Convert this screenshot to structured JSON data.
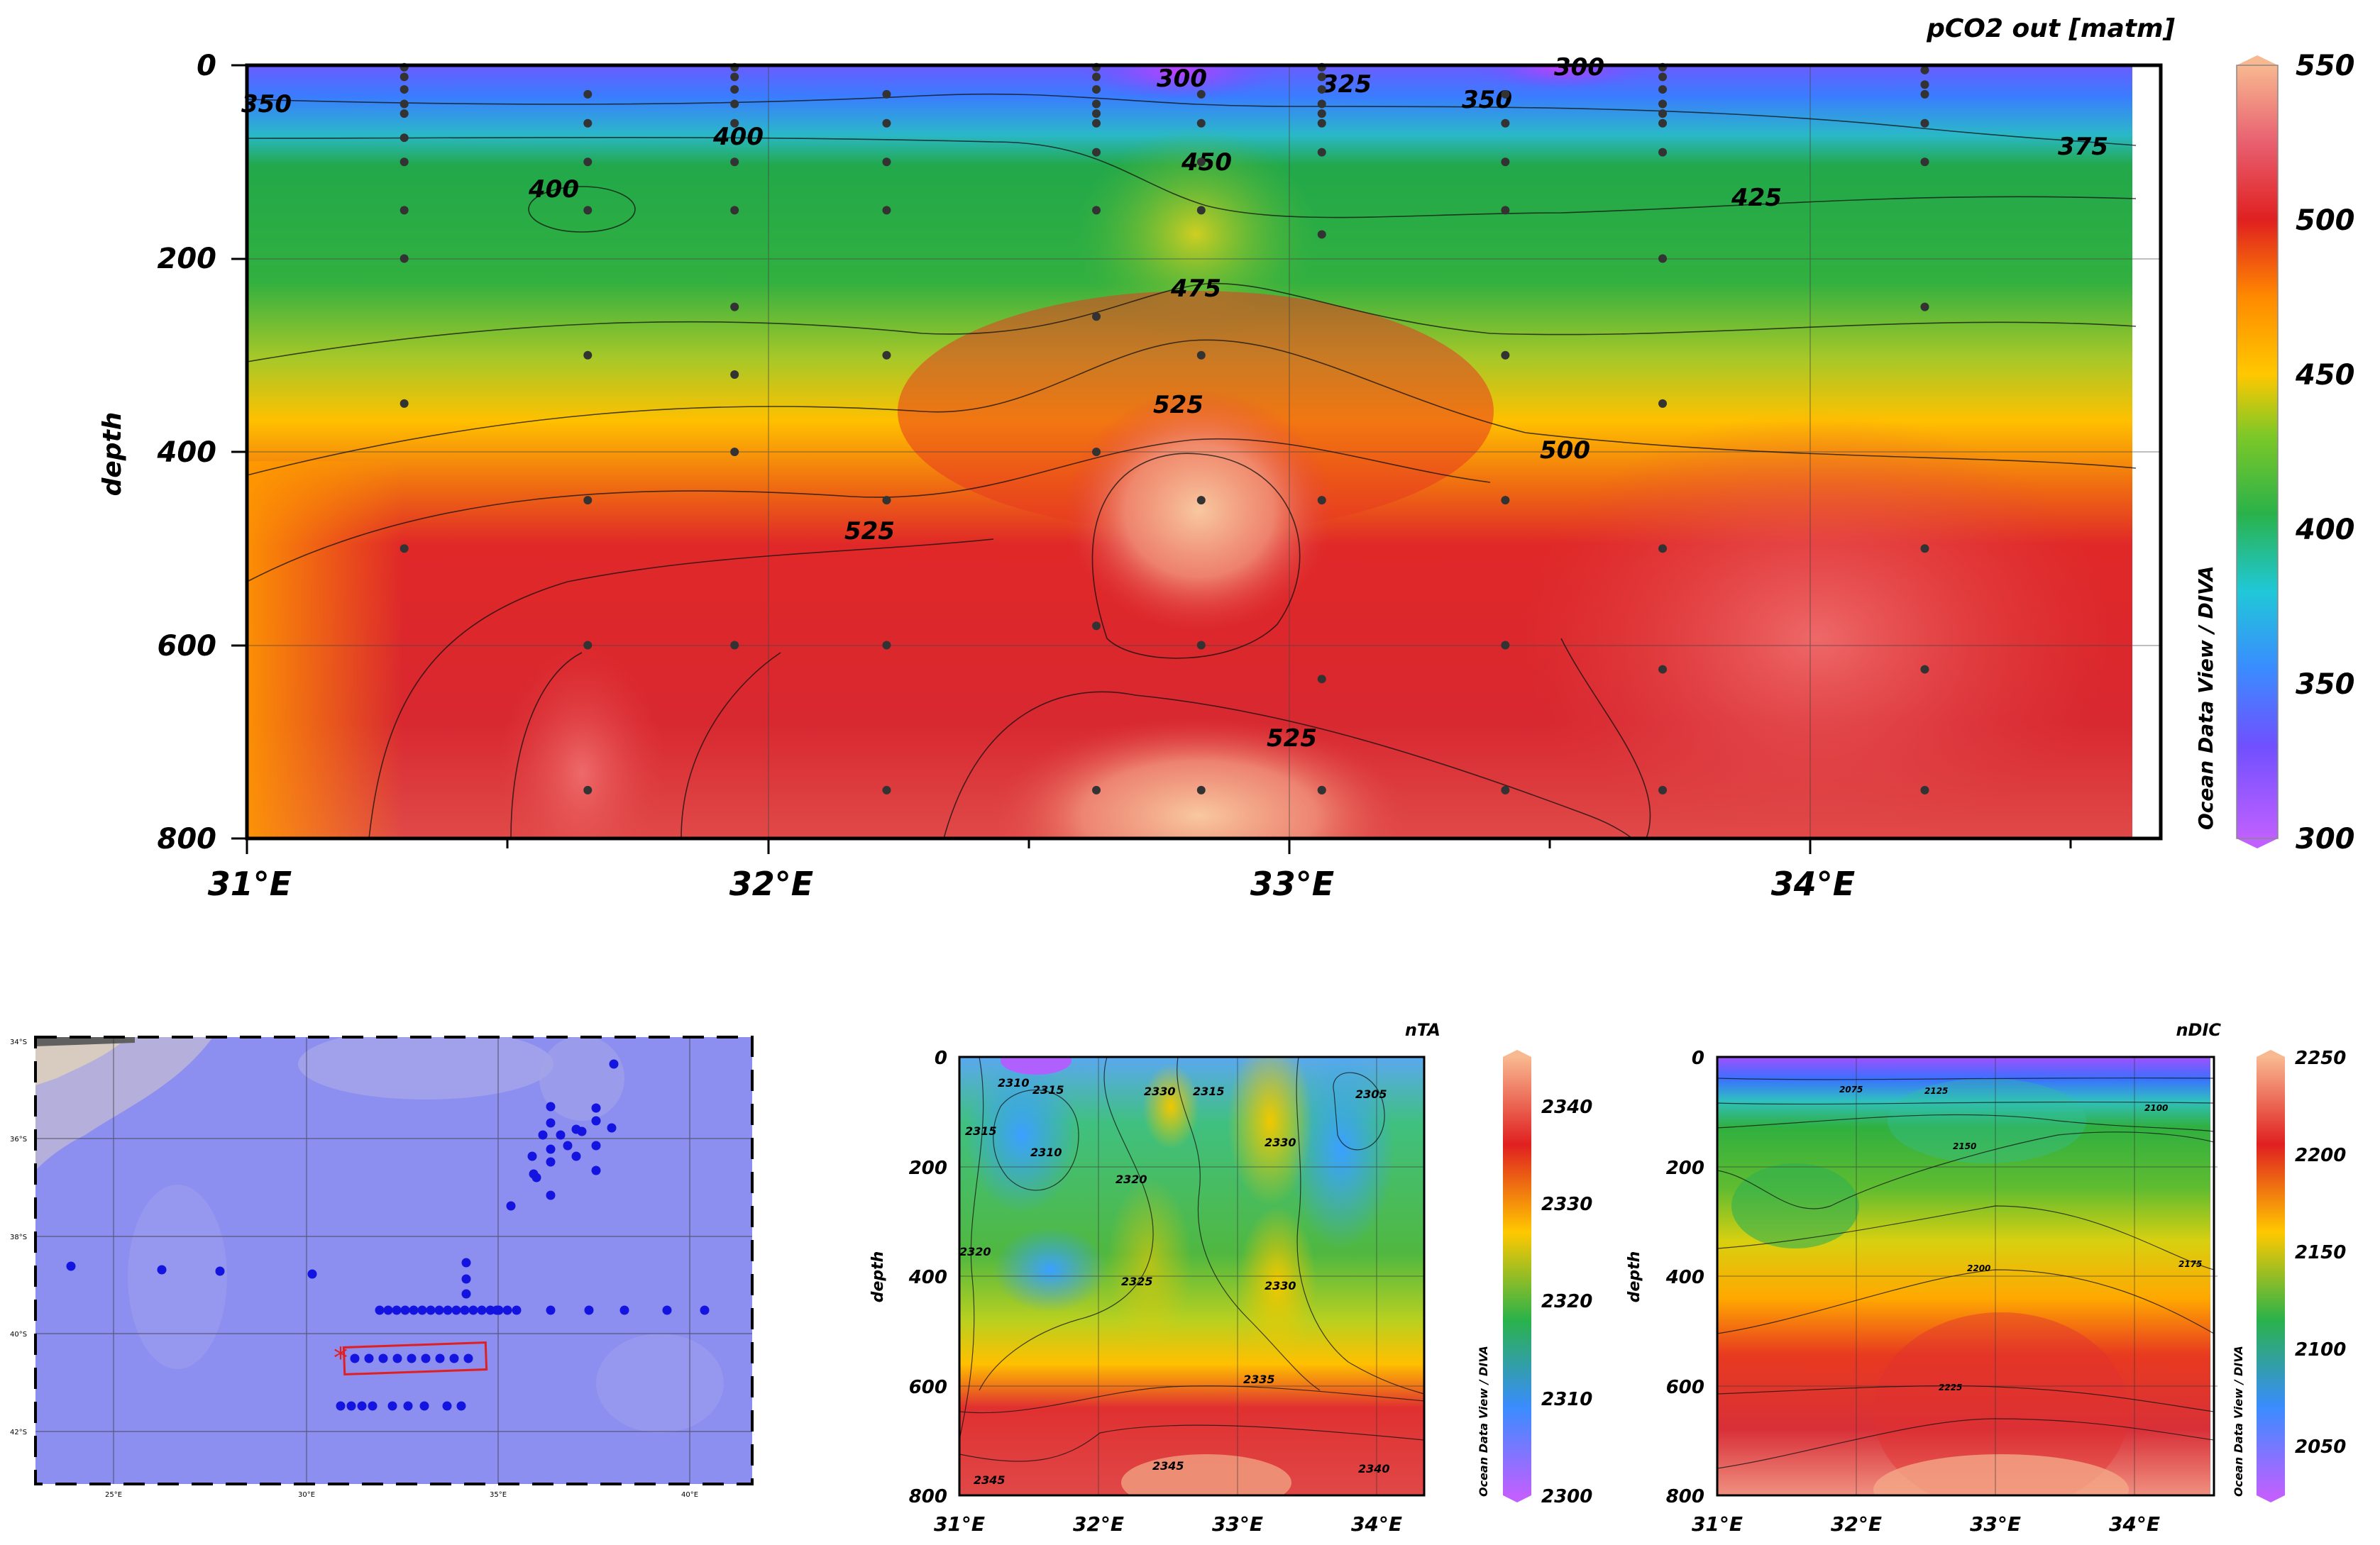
{
  "chart_data": [
    {
      "type": "heatmap",
      "title": "pCO2 out [matm]",
      "ylabel": "depth",
      "xlabel": "",
      "x_ticks": [
        "31°E",
        "32°E",
        "33°E",
        "34°E"
      ],
      "y_ticks": [
        "0",
        "200",
        "400",
        "600",
        "800"
      ],
      "xlim": [
        31.0,
        34.65
      ],
      "ylim": [
        0,
        800
      ],
      "colorbar": {
        "ticks": [
          "300",
          "350",
          "400",
          "450",
          "500",
          "550"
        ],
        "range": [
          300,
          550
        ],
        "credit": "Ocean Data View / DIVA"
      },
      "contour_labels": [
        "350",
        "300",
        "325",
        "300",
        "350",
        "375",
        "400",
        "400",
        "450",
        "425",
        "475",
        "525",
        "500",
        "525",
        "525"
      ],
      "sample_points": {
        "x": [
          31.3,
          31.3,
          31.3,
          31.3,
          31.3,
          31.3,
          31.3,
          31.3,
          31.3,
          31.3,
          31.3,
          31.65,
          31.65,
          31.65,
          31.65,
          31.65,
          31.65,
          31.65,
          31.65,
          31.93,
          31.93,
          31.93,
          31.93,
          31.93,
          31.93,
          31.93,
          31.93,
          31.93,
          31.93,
          31.93,
          32.22,
          32.22,
          32.22,
          32.22,
          32.22,
          32.22,
          32.22,
          32.22,
          32.62,
          32.62,
          32.62,
          32.62,
          32.62,
          32.62,
          32.62,
          32.62,
          32.62,
          32.62,
          32.62,
          32.62,
          32.82,
          32.82,
          32.82,
          32.82,
          32.82,
          32.82,
          32.82,
          32.82,
          33.05,
          33.05,
          33.05,
          33.05,
          33.05,
          33.05,
          33.05,
          33.05,
          33.05,
          33.05,
          33.05,
          33.05,
          33.4,
          33.4,
          33.4,
          33.4,
          33.4,
          33.4,
          33.4,
          33.4,
          33.7,
          33.7,
          33.7,
          33.7,
          33.7,
          33.7,
          33.7,
          33.7,
          33.7,
          33.7,
          33.7,
          33.7,
          34.2,
          34.2,
          34.2,
          34.2,
          34.2,
          34.2,
          34.2,
          34.2,
          34.2
        ],
        "y": [
          2,
          12,
          25,
          40,
          50,
          75,
          100,
          150,
          200,
          350,
          500,
          30,
          60,
          100,
          150,
          300,
          450,
          600,
          750,
          2,
          12,
          25,
          40,
          60,
          100,
          150,
          250,
          320,
          400,
          600,
          30,
          60,
          100,
          150,
          300,
          450,
          600,
          750,
          2,
          12,
          25,
          40,
          50,
          60,
          90,
          150,
          260,
          400,
          580,
          750,
          30,
          60,
          100,
          150,
          300,
          450,
          600,
          750,
          2,
          12,
          25,
          40,
          50,
          60,
          90,
          175,
          450,
          635,
          750,
          750,
          30,
          60,
          100,
          150,
          300,
          450,
          600,
          750,
          2,
          12,
          25,
          40,
          50,
          60,
          90,
          200,
          350,
          500,
          625,
          750,
          30,
          60,
          100,
          250,
          500,
          625,
          750,
          5,
          20
        ]
      }
    },
    {
      "type": "scatter",
      "title": "",
      "x_ticks": [
        "25°E",
        "30°E",
        "35°E",
        "40°E"
      ],
      "y_ticks": [
        "34°S",
        "36°S",
        "38°S",
        "40°S",
        "42°S"
      ],
      "station_count": 64
    },
    {
      "type": "heatmap",
      "title": "nTA",
      "ylabel": "depth",
      "x_ticks": [
        "31°E",
        "32°E",
        "33°E",
        "34°E"
      ],
      "y_ticks": [
        "0",
        "200",
        "400",
        "600",
        "800"
      ],
      "ylim": [
        0,
        800
      ],
      "colorbar": {
        "ticks": [
          "2300",
          "2310",
          "2320",
          "2330",
          "2340"
        ],
        "range": [
          2300,
          2345
        ],
        "credit": "Ocean Data View / DIVA"
      },
      "contour_labels": [
        "2310",
        "2315",
        "2315",
        "2330",
        "2315",
        "2330",
        "2305",
        "2310",
        "2320",
        "2325",
        "2330",
        "2335",
        "2320",
        "2345",
        "2345",
        "2340"
      ]
    },
    {
      "type": "heatmap",
      "title": "nDIC",
      "ylabel": "depth",
      "x_ticks": [
        "31°E",
        "32°E",
        "33°E",
        "34°E"
      ],
      "y_ticks": [
        "0",
        "200",
        "400",
        "600",
        "800"
      ],
      "ylim": [
        0,
        800
      ],
      "colorbar": {
        "ticks": [
          "2050",
          "2100",
          "2150",
          "2200",
          "2250"
        ],
        "range": [
          2025,
          2250
        ],
        "credit": "Ocean Data View / DIVA"
      },
      "contour_labels": [
        "2075",
        "2125",
        "2150",
        "2100",
        "2200",
        "2175",
        "2225"
      ]
    }
  ],
  "colors": {
    "scale": [
      "#b05cff",
      "#6a4cff",
      "#3a8cff",
      "#1fc8e0",
      "#2ab24a",
      "#58c030",
      "#b8d020",
      "#ffc800",
      "#ff8a00",
      "#e83a1a",
      "#d0202a",
      "#e8606a",
      "#f8b090"
    ],
    "map_water": "#8c8ef0",
    "map_land": "#c8b8b0",
    "station": "#1414e0",
    "selection": "#e02020"
  }
}
